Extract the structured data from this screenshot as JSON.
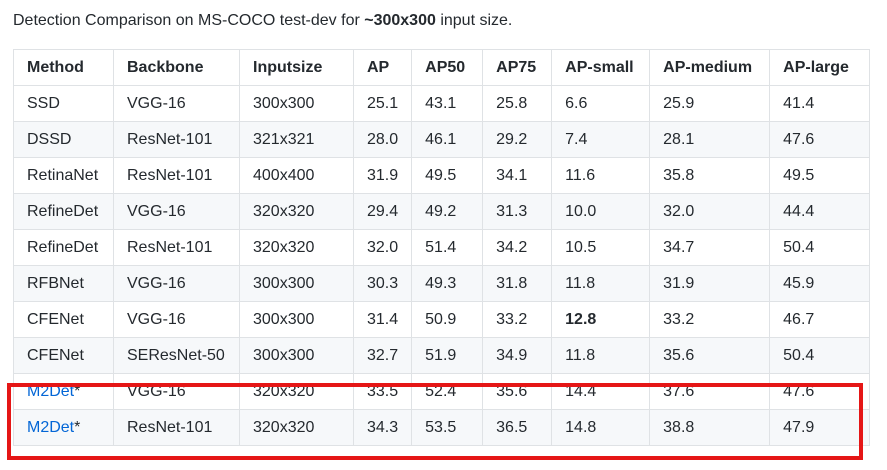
{
  "caption": {
    "prefix": "Detection Comparison on MS-COCO test-dev for ",
    "bold": "~300x300",
    "suffix": " input size."
  },
  "table": {
    "headers": [
      "Method",
      "Backbone",
      "Inputsize",
      "AP",
      "AP50",
      "AP75",
      "AP-small",
      "AP-medium",
      "AP-large"
    ],
    "rows": [
      {
        "method": "SSD",
        "suffix": "",
        "link": false,
        "backbone": "VGG-16",
        "inputsize": "300x300",
        "ap": "25.1",
        "ap50": "43.1",
        "ap75": "25.8",
        "ap_small": "6.6",
        "ap_medium": "25.9",
        "ap_large": "41.4"
      },
      {
        "method": "DSSD",
        "suffix": "",
        "link": false,
        "backbone": "ResNet-101",
        "inputsize": "321x321",
        "ap": "28.0",
        "ap50": "46.1",
        "ap75": "29.2",
        "ap_small": "7.4",
        "ap_medium": "28.1",
        "ap_large": "47.6"
      },
      {
        "method": "RetinaNet",
        "suffix": "",
        "link": false,
        "backbone": "ResNet-101",
        "inputsize": "400x400",
        "ap": "31.9",
        "ap50": "49.5",
        "ap75": "34.1",
        "ap_small": "11.6",
        "ap_medium": "35.8",
        "ap_large": "49.5"
      },
      {
        "method": "RefineDet",
        "suffix": "",
        "link": false,
        "backbone": "VGG-16",
        "inputsize": "320x320",
        "ap": "29.4",
        "ap50": "49.2",
        "ap75": "31.3",
        "ap_small": "10.0",
        "ap_medium": "32.0",
        "ap_large": "44.4"
      },
      {
        "method": "RefineDet",
        "suffix": "",
        "link": false,
        "backbone": "ResNet-101",
        "inputsize": "320x320",
        "ap": "32.0",
        "ap50": "51.4",
        "ap75": "34.2",
        "ap_small": "10.5",
        "ap_medium": "34.7",
        "ap_large": "50.4"
      },
      {
        "method": "RFBNet",
        "suffix": "",
        "link": false,
        "backbone": "VGG-16",
        "inputsize": "300x300",
        "ap": "30.3",
        "ap50": "49.3",
        "ap75": "31.8",
        "ap_small": "11.8",
        "ap_medium": "31.9",
        "ap_large": "45.9"
      },
      {
        "method": "CFENet",
        "suffix": "",
        "link": false,
        "backbone": "VGG-16",
        "inputsize": "300x300",
        "ap": "31.4",
        "ap50": "50.9",
        "ap75": "33.2",
        "ap_small": "12.8",
        "ap_small_bold": true,
        "ap_medium": "33.2",
        "ap_large": "46.7"
      },
      {
        "method": "CFENet",
        "suffix": "",
        "link": false,
        "backbone": "SEResNet-50",
        "inputsize": "300x300",
        "ap": "32.7",
        "ap50": "51.9",
        "ap75": "34.9",
        "ap_small": "11.8",
        "ap_medium": "35.6",
        "ap_large": "50.4"
      },
      {
        "method": "M2Det",
        "suffix": "*",
        "link": true,
        "backbone": "VGG-16",
        "inputsize": "320x320",
        "ap": "33.5",
        "ap50": "52.4",
        "ap75": "35.6",
        "ap_small": "14.4",
        "ap_medium": "37.6",
        "ap_large": "47.6"
      },
      {
        "method": "M2Det",
        "suffix": "*",
        "link": true,
        "backbone": "ResNet-101",
        "inputsize": "320x320",
        "ap": "34.3",
        "ap50": "53.5",
        "ap75": "36.5",
        "ap_small": "14.8",
        "ap_medium": "38.8",
        "ap_large": "47.9"
      }
    ]
  },
  "colors": {
    "link": "#0366d6",
    "highlight_border": "#e51616",
    "stripe": "#f6f8fa",
    "grid": "#dfe2e5"
  }
}
